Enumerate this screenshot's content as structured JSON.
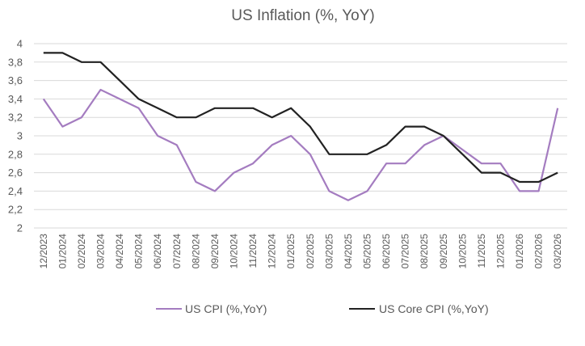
{
  "chart_data": {
    "type": "line",
    "title": "US Inflation (%, YoY)",
    "xlabel": "",
    "ylabel": "",
    "ylim": [
      2,
      4
    ],
    "ytick_step": 0.2,
    "yticks": [
      "2",
      "2,2",
      "2,4",
      "2,6",
      "2,8",
      "3",
      "3,2",
      "3,4",
      "3,6",
      "3,8",
      "4"
    ],
    "grid": true,
    "legend_position": "bottom",
    "categories": [
      "12/2023",
      "01/2024",
      "02/2024",
      "03/2024",
      "04/2024",
      "05/2024",
      "06/2024",
      "07/2024",
      "08/2024",
      "09/2024",
      "10/2024",
      "11/2024",
      "12/2024",
      "01/2025",
      "02/2025",
      "03/2025",
      "04/2025",
      "05/2025",
      "06/2025",
      "07/2025",
      "08/2025",
      "09/2025",
      "10/2025",
      "11/2025",
      "12/2025",
      "01/2026",
      "02/2026",
      "03/2026"
    ],
    "series": [
      {
        "name": "US CPI (%,YoY)",
        "color": "#a47cc0",
        "values": [
          3.4,
          3.1,
          3.2,
          3.5,
          3.4,
          3.3,
          3.0,
          2.9,
          2.5,
          2.4,
          2.6,
          2.7,
          2.9,
          3.0,
          2.8,
          2.4,
          2.3,
          2.4,
          2.7,
          2.7,
          2.9,
          3.0,
          2.85,
          2.7,
          2.7,
          2.4,
          2.4,
          3.3
        ]
      },
      {
        "name": "US Core CPI (%,YoY)",
        "color": "#222222",
        "values": [
          3.9,
          3.9,
          3.8,
          3.8,
          3.6,
          3.4,
          3.3,
          3.2,
          3.2,
          3.3,
          3.3,
          3.3,
          3.2,
          3.3,
          3.1,
          2.8,
          2.8,
          2.8,
          2.9,
          3.1,
          3.1,
          3.0,
          2.8,
          2.6,
          2.6,
          2.5,
          2.5,
          2.6
        ]
      }
    ]
  }
}
